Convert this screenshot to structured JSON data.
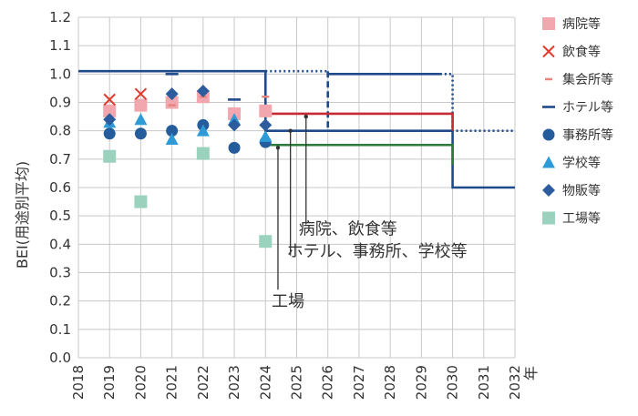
{
  "chart_data": {
    "type": "scatter",
    "xlabel": "年",
    "ylabel": "BEI(用途別平均)",
    "xlim": [
      2018,
      2032
    ],
    "ylim": [
      0.0,
      1.2
    ],
    "x_ticks": [
      "2018",
      "2019",
      "2020",
      "2021",
      "2022",
      "2023",
      "2024",
      "2025",
      "2026",
      "2027",
      "2028",
      "2029",
      "2030",
      "2031",
      "2032"
    ],
    "y_ticks": [
      "0.0",
      "0.1",
      "0.2",
      "0.3",
      "0.4",
      "0.5",
      "0.6",
      "0.7",
      "0.8",
      "0.9",
      "1.0",
      "1.1",
      "1.2"
    ],
    "grid": true,
    "legend_position": "right",
    "series": [
      {
        "name": "病院等",
        "marker": "square",
        "color": "#f2a7ae",
        "points": [
          [
            2019,
            0.87
          ],
          [
            2020,
            0.89
          ],
          [
            2021,
            0.9
          ],
          [
            2022,
            0.92
          ],
          [
            2023,
            0.86
          ],
          [
            2024,
            0.87
          ]
        ]
      },
      {
        "name": "飲食等",
        "marker": "x",
        "color": "#e23b2e",
        "points": [
          [
            2019,
            0.91
          ],
          [
            2020,
            0.93
          ]
        ]
      },
      {
        "name": "集会所等",
        "marker": "dash",
        "color": "#e9837f",
        "points": [
          [
            2021,
            0.89
          ],
          [
            2022,
            0.92
          ],
          [
            2023,
            0.82
          ],
          [
            2024,
            0.92
          ]
        ]
      },
      {
        "name": "ホテル等",
        "marker": "hline",
        "color": "#1e4a8a",
        "points": [
          [
            2021,
            1.0
          ],
          [
            2023,
            0.91
          ]
        ]
      },
      {
        "name": "事務所等",
        "marker": "circle",
        "color": "#255c9c",
        "points": [
          [
            2019,
            0.79
          ],
          [
            2020,
            0.79
          ],
          [
            2021,
            0.8
          ],
          [
            2022,
            0.82
          ],
          [
            2023,
            0.74
          ],
          [
            2024,
            0.76
          ]
        ]
      },
      {
        "name": "学校等",
        "marker": "triangle",
        "color": "#2e9bd6",
        "points": [
          [
            2019,
            0.83
          ],
          [
            2020,
            0.84
          ],
          [
            2021,
            0.77
          ],
          [
            2022,
            0.8
          ],
          [
            2023,
            0.84
          ],
          [
            2024,
            0.78
          ]
        ]
      },
      {
        "name": "物販等",
        "marker": "diamond",
        "color": "#2d5c9e",
        "points": [
          [
            2019,
            0.84
          ],
          [
            2021,
            0.93
          ],
          [
            2022,
            0.94
          ],
          [
            2023,
            0.82
          ],
          [
            2024,
            0.82
          ]
        ]
      },
      {
        "name": "工場等",
        "marker": "square",
        "color": "#9ad2bd",
        "points": [
          [
            2019,
            0.71
          ],
          [
            2020,
            0.55
          ],
          [
            2022,
            0.72
          ],
          [
            2024,
            0.41
          ]
        ]
      }
    ],
    "target_lines": [
      {
        "color": "#1e4a8a",
        "style": "solid",
        "points": [
          [
            2018,
            1.01
          ],
          [
            2024,
            1.01
          ],
          [
            2024,
            0.8
          ],
          [
            2030,
            0.8
          ],
          [
            2030,
            0.6
          ],
          [
            2032,
            0.6
          ]
        ]
      },
      {
        "color": "#1e4a8a",
        "style": "dotted",
        "points": [
          [
            2024,
            1.01
          ],
          [
            2026,
            1.01
          ]
        ]
      },
      {
        "color": "#1e4a8a",
        "style": "dashed",
        "points": [
          [
            2026,
            1.01
          ],
          [
            2026,
            0.8
          ]
        ]
      },
      {
        "color": "#1e4a8a",
        "style": "solid",
        "points": [
          [
            2026,
            1.0
          ],
          [
            2029.6,
            1.0
          ]
        ]
      },
      {
        "color": "#1e4a8a",
        "style": "dotted",
        "points": [
          [
            2029.6,
            1.0
          ],
          [
            2030,
            1.0
          ],
          [
            2030,
            0.8
          ],
          [
            2032,
            0.8
          ]
        ]
      },
      {
        "color": "#c62a33",
        "style": "solid",
        "points": [
          [
            2024,
            0.86
          ],
          [
            2030,
            0.86
          ],
          [
            2030,
            0.8
          ]
        ]
      },
      {
        "color": "#2c7a3c",
        "style": "solid",
        "points": [
          [
            2024,
            0.75
          ],
          [
            2030,
            0.75
          ],
          [
            2030,
            0.68
          ]
        ]
      }
    ],
    "annotations": [
      {
        "text": "病院、飲食等",
        "pointer": [
          2025.3,
          0.85
        ],
        "label_anchor": [
          2025.3,
          0.47
        ]
      },
      {
        "text": "ホテル、事務所、学校等",
        "pointer": [
          2024.8,
          0.8
        ],
        "label_anchor": [
          2024.8,
          0.36
        ]
      },
      {
        "text": "工場",
        "pointer": [
          2024.4,
          0.74
        ],
        "label_anchor": [
          2024.4,
          0.24
        ]
      }
    ]
  }
}
